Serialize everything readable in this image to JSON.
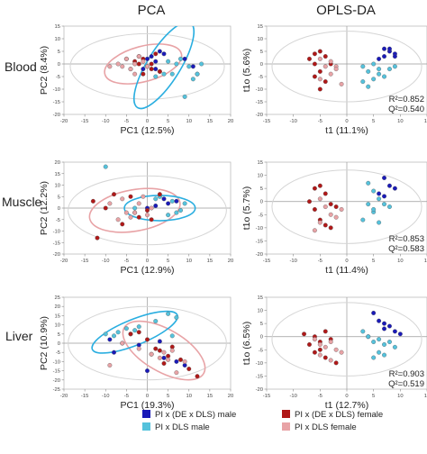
{
  "headers": {
    "pca": "PCA",
    "oplsda": "OPLS-DA"
  },
  "row_labels": [
    "Blood",
    "Muscle",
    "Liver"
  ],
  "legend": [
    {
      "label": "PI x (DE x DLS) male",
      "color": "#1a1ab8"
    },
    {
      "label": "PI x DLS male",
      "color": "#55c2dc"
    },
    {
      "label": "PI x (DE x DLS) female",
      "color": "#b01818"
    },
    {
      "label": "PI x DLS female",
      "color": "#e8a3a6"
    }
  ],
  "chart_data": [
    {
      "id": "blood-pca",
      "type": "scatter",
      "xlabel": "PC1 (12.5%)",
      "ylabel": "PC2 (8.4%)",
      "xlim": [
        -20,
        20
      ],
      "ylim": [
        -20,
        15
      ],
      "xticks": [
        -20,
        -15,
        -10,
        -5,
        0,
        5,
        10,
        15,
        20
      ],
      "yticks": [
        -20,
        -15,
        -10,
        -5,
        0,
        5,
        10,
        15
      ],
      "ellipses": [
        {
          "cx": 0,
          "cy": -1,
          "rx": 18.5,
          "ry": 13,
          "angle": 0,
          "color": "#d5d5d5"
        },
        {
          "cx": -1,
          "cy": 0,
          "rx": 9.5,
          "ry": 7,
          "angle": 15,
          "color": "#e8a3a6"
        },
        {
          "cx": 4,
          "cy": -0.5,
          "rx": 12,
          "ry": 6.5,
          "angle": 58,
          "color": "#2aaee0"
        }
      ],
      "series": [
        {
          "name": "PI x (DE x DLS) male",
          "color": "#1a1ab8",
          "x": [
            0,
            1,
            2,
            3,
            -1,
            4,
            11,
            12,
            2,
            9
          ],
          "y": [
            2,
            3,
            1,
            5,
            -2,
            4,
            -1,
            -4,
            -2,
            2
          ]
        },
        {
          "name": "PI x DLS male",
          "color": "#55c2dc",
          "x": [
            5,
            7,
            8,
            10,
            4,
            11,
            6,
            9,
            3,
            13,
            12,
            2
          ],
          "y": [
            1,
            0,
            2,
            -1,
            -4,
            -6,
            -4,
            -13,
            -3,
            0,
            -4,
            -5
          ]
        },
        {
          "name": "PI x (DE x DLS) female",
          "color": "#b01818",
          "x": [
            -3,
            -1,
            0,
            -2,
            -4,
            1,
            2,
            3,
            -5,
            -1,
            -2,
            1
          ],
          "y": [
            1,
            2,
            -1,
            3,
            -2,
            0,
            4,
            -3,
            2,
            -4,
            0,
            -2
          ]
        },
        {
          "name": "PI x DLS female",
          "color": "#e8a3a6",
          "x": [
            -6,
            -4,
            -3,
            -2,
            -1,
            0,
            -5,
            -7,
            -9,
            -3
          ],
          "y": [
            -1,
            -2,
            0,
            3,
            1,
            -1,
            2,
            0,
            -1,
            -4
          ]
        }
      ]
    },
    {
      "id": "blood-opls",
      "type": "scatter",
      "xlabel": "t1 (11.1%)",
      "ylabel": "t1o (5.6%)",
      "xlim": [
        -15,
        15
      ],
      "ylim": [
        -20,
        15
      ],
      "xticks": [
        -15,
        -10,
        -5,
        0,
        5,
        10,
        15
      ],
      "yticks": [
        -20,
        -15,
        -10,
        -5,
        0,
        5,
        10,
        15
      ],
      "annotations": [
        "R²=0.852",
        "Q²=0.540"
      ],
      "ellipses": [
        {
          "cx": 0,
          "cy": -1,
          "rx": 14,
          "ry": 14,
          "angle": 0,
          "color": "#d5d5d5"
        }
      ],
      "series": [
        {
          "name": "PI x (DE x DLS) male",
          "color": "#1a1ab8",
          "x": [
            7,
            8,
            9,
            7,
            8,
            6,
            9
          ],
          "y": [
            6,
            5,
            4,
            3,
            6,
            2,
            3
          ]
        },
        {
          "name": "PI x DLS male",
          "color": "#55c2dc",
          "x": [
            3,
            4,
            5,
            6,
            7,
            8,
            9,
            5,
            4,
            6,
            3
          ],
          "y": [
            -1,
            -3,
            0,
            -2,
            -5,
            -2,
            -1,
            -6,
            -9,
            -4,
            -7
          ]
        },
        {
          "name": "PI x (DE x DLS) female",
          "color": "#b01818",
          "x": [
            -6,
            -5,
            -4,
            -6,
            -7,
            -5,
            -3,
            -4,
            -6,
            -5
          ],
          "y": [
            4,
            5,
            3,
            0,
            2,
            -3,
            0,
            -7,
            -5,
            -10
          ]
        },
        {
          "name": "PI x DLS female",
          "color": "#e8a3a6",
          "x": [
            -5,
            -3,
            -2,
            -4,
            -3,
            -2,
            -5,
            -1
          ],
          "y": [
            2,
            1,
            -1,
            -1,
            -4,
            -2,
            -6,
            -8
          ]
        }
      ]
    },
    {
      "id": "muscle-pca",
      "type": "scatter",
      "xlabel": "PC1 (12.9%)",
      "ylabel": "PC2 (12.2%)",
      "xlim": [
        -20,
        20
      ],
      "ylim": [
        -20,
        20
      ],
      "xticks": [
        -20,
        -15,
        -10,
        -5,
        0,
        5,
        10,
        15,
        20
      ],
      "yticks": [
        -20,
        -15,
        -10,
        -5,
        0,
        5,
        10,
        15,
        20
      ],
      "ellipses": [
        {
          "cx": 0,
          "cy": -1,
          "rx": 19,
          "ry": 15,
          "angle": 0,
          "color": "#d5d5d5"
        },
        {
          "cx": -3,
          "cy": -1,
          "rx": 11,
          "ry": 9,
          "angle": 10,
          "color": "#e8a3a6"
        },
        {
          "cx": 3,
          "cy": 0,
          "rx": 8.5,
          "ry": 5.5,
          "angle": 0,
          "color": "#2aaee0"
        }
      ],
      "series": [
        {
          "name": "PI x (DE x DLS) male",
          "color": "#1a1ab8",
          "x": [
            2,
            5,
            0,
            7,
            4
          ],
          "y": [
            1,
            2,
            0,
            3,
            4
          ]
        },
        {
          "name": "PI x DLS male",
          "color": "#55c2dc",
          "x": [
            -3,
            6,
            8,
            9,
            2,
            3,
            -10,
            7,
            5
          ],
          "y": [
            0,
            3,
            -1,
            2,
            4,
            5,
            18,
            -2,
            -3
          ]
        },
        {
          "name": "PI x (DE x DLS) female",
          "color": "#b01818",
          "x": [
            -13,
            -8,
            -10,
            -4,
            -2,
            -6,
            -12,
            1,
            3,
            0,
            -3
          ],
          "y": [
            3,
            6,
            0,
            5,
            -4,
            -7,
            -13,
            -5,
            6,
            -1,
            -2
          ]
        },
        {
          "name": "PI x DLS female",
          "color": "#e8a3a6",
          "x": [
            -6,
            -5,
            -3,
            -2,
            0,
            -7,
            -4,
            -1,
            1,
            -9
          ],
          "y": [
            4,
            -2,
            -2,
            2,
            -3,
            -5,
            -4,
            5,
            0,
            2
          ]
        }
      ]
    },
    {
      "id": "muscle-opls",
      "type": "scatter",
      "xlabel": "t1 (11.4%)",
      "ylabel": "t1o (5.7%)",
      "xlim": [
        -15,
        15
      ],
      "ylim": [
        -20,
        15
      ],
      "xticks": [
        -15,
        -10,
        -5,
        0,
        5,
        10,
        15
      ],
      "yticks": [
        -20,
        -15,
        -10,
        -5,
        0,
        5,
        10,
        15
      ],
      "annotations": [
        "R²=0.853",
        "Q²=0.583"
      ],
      "ellipses": [
        {
          "cx": 0,
          "cy": -2,
          "rx": 14,
          "ry": 14,
          "angle": 0,
          "color": "#d5d5d5"
        }
      ],
      "series": [
        {
          "name": "PI x (DE x DLS) male",
          "color": "#1a1ab8",
          "x": [
            7,
            8,
            9,
            6,
            7
          ],
          "y": [
            9,
            6,
            5,
            3,
            2
          ]
        },
        {
          "name": "PI x DLS male",
          "color": "#55c2dc",
          "x": [
            4,
            5,
            6,
            7,
            8,
            5,
            6,
            3,
            4,
            5
          ],
          "y": [
            7,
            4,
            1,
            -1,
            -2,
            -4,
            -8,
            -7,
            -1,
            -3
          ]
        },
        {
          "name": "PI x (DE x DLS) female",
          "color": "#b01818",
          "x": [
            -6,
            -5,
            -4,
            -7,
            -3,
            -6,
            -5,
            -2,
            -4,
            -3
          ],
          "y": [
            5,
            6,
            3,
            0,
            -1,
            -3,
            -7,
            -2,
            -9,
            -10
          ]
        },
        {
          "name": "PI x DLS female",
          "color": "#e8a3a6",
          "x": [
            -5,
            -4,
            -3,
            -2,
            -1,
            -5,
            -6
          ],
          "y": [
            1,
            -2,
            -5,
            -6,
            -3,
            -8,
            -11
          ]
        }
      ]
    },
    {
      "id": "liver-pca",
      "type": "scatter",
      "xlabel": "PC1 (19.3%)",
      "ylabel": "PC2 (10.9%)",
      "xlim": [
        -20,
        20
      ],
      "ylim": [
        -25,
        25
      ],
      "xticks": [
        -20,
        -15,
        -10,
        -5,
        0,
        5,
        10,
        15,
        20
      ],
      "yticks": [
        -25,
        -20,
        -15,
        -10,
        -5,
        0,
        5,
        10,
        15,
        20,
        25
      ],
      "ellipses": [
        {
          "cx": 0,
          "cy": 0,
          "rx": 19,
          "ry": 20,
          "angle": 0,
          "color": "#d5d5d5"
        },
        {
          "cx": 4,
          "cy": -4,
          "rx": 11,
          "ry": 11.5,
          "angle": -30,
          "color": "#e8a3a6"
        },
        {
          "cx": -3,
          "cy": 6,
          "rx": 11,
          "ry": 7,
          "angle": 22,
          "color": "#2aaee0"
        }
      ],
      "series": [
        {
          "name": "PI x (DE x DLS) male",
          "color": "#1a1ab8",
          "x": [
            -9,
            -6,
            -2,
            3,
            4,
            7,
            -8,
            9,
            0
          ],
          "y": [
            2,
            0,
            -1,
            1,
            -8,
            -10,
            -5,
            -12,
            -15
          ]
        },
        {
          "name": "PI x DLS male",
          "color": "#55c2dc",
          "x": [
            -10,
            -7,
            -5,
            -4,
            -3,
            -2,
            -8,
            2,
            5,
            7,
            6
          ],
          "y": [
            5,
            6,
            8,
            5,
            7,
            9,
            4,
            12,
            16,
            14,
            4
          ]
        },
        {
          "name": "PI x (DE x DLS) female",
          "color": "#b01818",
          "x": [
            -4,
            -2,
            0,
            2,
            3,
            5,
            8,
            10,
            12,
            6,
            4,
            1
          ],
          "y": [
            5,
            6,
            2,
            -3,
            -4,
            -7,
            -9,
            -14,
            -18,
            -2,
            -11,
            -6
          ]
        },
        {
          "name": "PI x DLS female",
          "color": "#e8a3a6",
          "x": [
            -6,
            -2,
            1,
            3,
            4,
            6,
            -9,
            9,
            7,
            5
          ],
          "y": [
            0,
            -3,
            -6,
            -8,
            -5,
            -4,
            -12,
            -10,
            -16,
            -9
          ]
        }
      ]
    },
    {
      "id": "liver-opls",
      "type": "scatter",
      "xlabel": "t1 (12.7%)",
      "ylabel": "t1o (6.5%)",
      "xlim": [
        -15,
        15
      ],
      "ylim": [
        -20,
        15
      ],
      "xticks": [
        -15,
        -10,
        -5,
        0,
        5,
        10,
        15
      ],
      "yticks": [
        -20,
        -15,
        -10,
        -5,
        0,
        5,
        10,
        15
      ],
      "annotations": [
        "R²=0.903",
        "Q²=0.519"
      ],
      "ellipses": [
        {
          "cx": 0,
          "cy": -1,
          "rx": 14,
          "ry": 14,
          "angle": 0,
          "color": "#d5d5d5"
        }
      ],
      "series": [
        {
          "name": "PI x (DE x DLS) male",
          "color": "#1a1ab8",
          "x": [
            5,
            6,
            7,
            8,
            7,
            9,
            10,
            4
          ],
          "y": [
            9,
            6,
            5,
            4,
            3,
            2,
            1,
            0
          ]
        },
        {
          "name": "PI x DLS male",
          "color": "#55c2dc",
          "x": [
            3,
            4,
            5,
            6,
            7,
            8,
            9,
            6,
            5,
            7
          ],
          "y": [
            2,
            0,
            -2,
            -1,
            -3,
            -2,
            -4,
            -6,
            -8,
            -7
          ]
        },
        {
          "name": "PI x (DE x DLS) female",
          "color": "#b01818",
          "x": [
            -8,
            -6,
            -5,
            -4,
            -7,
            -3,
            -5,
            -6,
            -4,
            -2
          ],
          "y": [
            1,
            0,
            -2,
            2,
            -3,
            -1,
            -5,
            -6,
            -8,
            -10
          ]
        },
        {
          "name": "PI x DLS female",
          "color": "#e8a3a6",
          "x": [
            -6,
            -5,
            -4,
            -3,
            -2,
            -1,
            -5,
            -3
          ],
          "y": [
            -1,
            -3,
            -4,
            -2,
            -5,
            -6,
            -7,
            -9
          ]
        }
      ]
    }
  ]
}
